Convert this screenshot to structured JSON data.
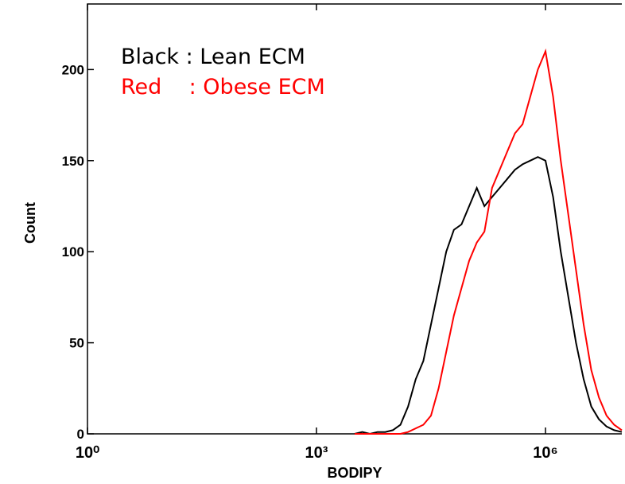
{
  "chart_data": {
    "type": "line",
    "xlabel": "BODIPY",
    "ylabel": "Count",
    "log_x": true,
    "xlim": [
      1,
      10000000
    ],
    "ylim": [
      0,
      236
    ],
    "xticks": [
      {
        "value": 1,
        "label": "10⁰"
      },
      {
        "value": 1000,
        "label": "10³"
      },
      {
        "value": 1000000,
        "label": "10⁶"
      }
    ],
    "yticks": [
      0,
      50,
      100,
      150,
      200
    ],
    "x": [
      3162,
      3981,
      5012,
      6310,
      7943,
      10000,
      12589,
      15849,
      19953,
      25119,
      31623,
      39811,
      50119,
      63096,
      79433,
      100000,
      125893,
      158489,
      199526,
      251189,
      316228,
      398107,
      501187,
      630957,
      794328,
      1000000,
      1258925,
      1584893,
      1995262,
      2511886,
      3162278,
      3981072,
      5011872,
      6309573,
      7943282,
      10000000
    ],
    "series": [
      {
        "name": "Black : Lean ECM",
        "color": "#000000",
        "values": [
          0,
          1,
          0,
          1,
          1,
          2,
          5,
          15,
          30,
          40,
          60,
          80,
          100,
          112,
          115,
          125,
          135,
          125,
          130,
          135,
          140,
          145,
          148,
          150,
          152,
          150,
          130,
          100,
          75,
          50,
          30,
          15,
          8,
          4,
          2,
          1
        ]
      },
      {
        "name": "Red    : Obese ECM",
        "color": "#ff0000",
        "values": [
          0,
          0,
          0,
          0,
          0,
          0,
          0,
          1,
          3,
          5,
          10,
          25,
          45,
          65,
          80,
          95,
          105,
          111,
          135,
          145,
          155,
          165,
          170,
          185,
          200,
          210,
          185,
          150,
          120,
          90,
          60,
          35,
          20,
          10,
          5,
          2
        ]
      }
    ]
  }
}
